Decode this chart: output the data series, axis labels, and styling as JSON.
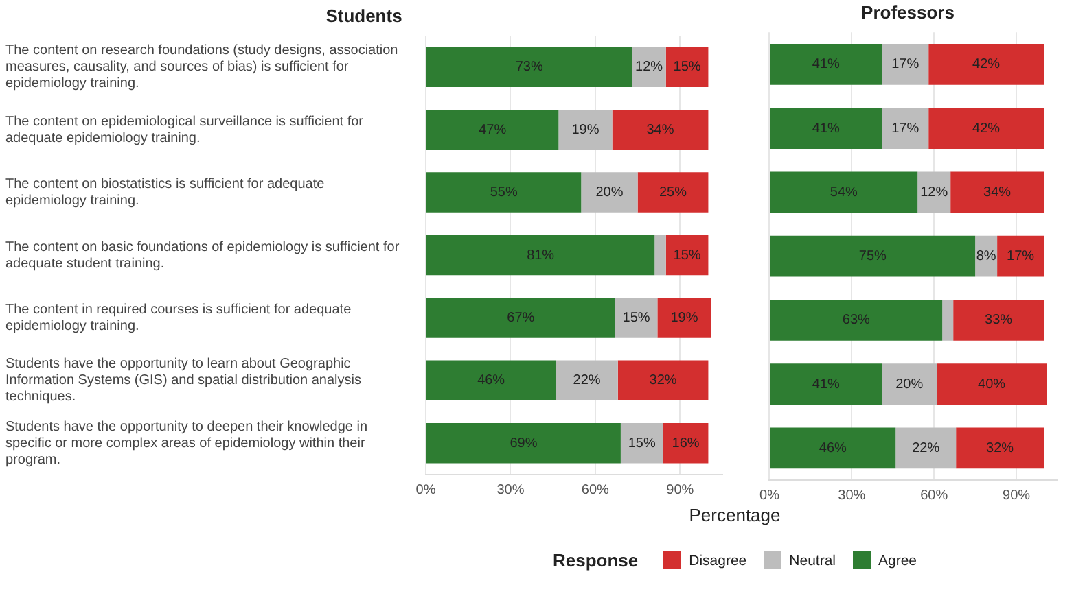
{
  "chart_data": [
    {
      "type": "bar",
      "title": "Students",
      "xlabel": "Percentage",
      "legend_title": "Response",
      "orientation": "horizontal",
      "stacked": true,
      "grid": "x",
      "legend": "bottom",
      "categories": [
        "The content on research foundations (study designs, association measures, causality, and sources of bias) is sufficient for epidemiology training.",
        "The content on epidemiological surveillance is sufficient for adequate epidemiology training.",
        "The content on biostatistics is sufficient for adequate epidemiology training.",
        "The content on basic foundations of epidemiology is sufficient for adequate student training.",
        "The content in required courses is sufficient for adequate epidemiology training.",
        "Students have the opportunity to learn about Geographic Information Systems (GIS) and spatial distribution analysis techniques.",
        "Students have the opportunity to deepen their knowledge in specific or more complex areas of epidemiology within their program."
      ],
      "xlim": [
        0,
        105
      ],
      "xticks": [
        {
          "value": 0,
          "label": "0%"
        },
        {
          "value": 30,
          "label": "30%"
        },
        {
          "value": 60,
          "label": "60%"
        },
        {
          "value": 90,
          "label": "90%"
        }
      ],
      "series": [
        {
          "name": "Agree",
          "color": "#2e7d32",
          "values": [
            73,
            47,
            55,
            81,
            67,
            46,
            69
          ],
          "value_labels": [
            "73%",
            "47%",
            "55%",
            "81%",
            "67%",
            "46%",
            "69%"
          ]
        },
        {
          "name": "Neutral",
          "color": "#bdbdbd",
          "values": [
            12,
            19,
            20,
            4,
            15,
            22,
            15
          ],
          "value_labels": [
            "12%",
            "19%",
            "20%",
            null,
            "15%",
            "22%",
            "15%"
          ]
        },
        {
          "name": "Disagree",
          "color": "#d32f2f",
          "values": [
            15,
            34,
            25,
            15,
            19,
            32,
            16
          ],
          "value_labels": [
            "15%",
            "34%",
            "25%",
            "15%",
            "19%",
            "32%",
            "16%"
          ]
        }
      ]
    },
    {
      "type": "bar",
      "title": "Professors",
      "orientation": "horizontal",
      "stacked": true,
      "grid": "x",
      "legend": "bottom",
      "tick_labels": "x",
      "categories": [
        null,
        null,
        null,
        null,
        null,
        null,
        null
      ],
      "xlim": [
        0,
        105
      ],
      "xticks": [
        {
          "value": 0,
          "label": "0%"
        },
        {
          "value": 30,
          "label": "30%"
        },
        {
          "value": 60,
          "label": "60%"
        },
        {
          "value": 90,
          "label": "90%"
        }
      ],
      "series": [
        {
          "name": "Agree",
          "color": "#2e7d32",
          "values": [
            41,
            41,
            54,
            75,
            63,
            41,
            46
          ],
          "value_labels": [
            "41%",
            "41%",
            "54%",
            "75%",
            "63%",
            "41%",
            "46%"
          ]
        },
        {
          "name": "Neutral",
          "color": "#bdbdbd",
          "values": [
            17,
            17,
            12,
            8,
            4,
            20,
            22
          ],
          "value_labels": [
            "17%",
            "17%",
            "12%",
            "8%",
            null,
            "20%",
            "22%"
          ]
        },
        {
          "name": "Disagree",
          "color": "#d32f2f",
          "values": [
            42,
            42,
            34,
            17,
            33,
            40,
            32
          ],
          "value_labels": [
            "42%",
            "42%",
            "34%",
            "17%",
            "33%",
            "40%",
            "32%"
          ]
        }
      ]
    }
  ]
}
